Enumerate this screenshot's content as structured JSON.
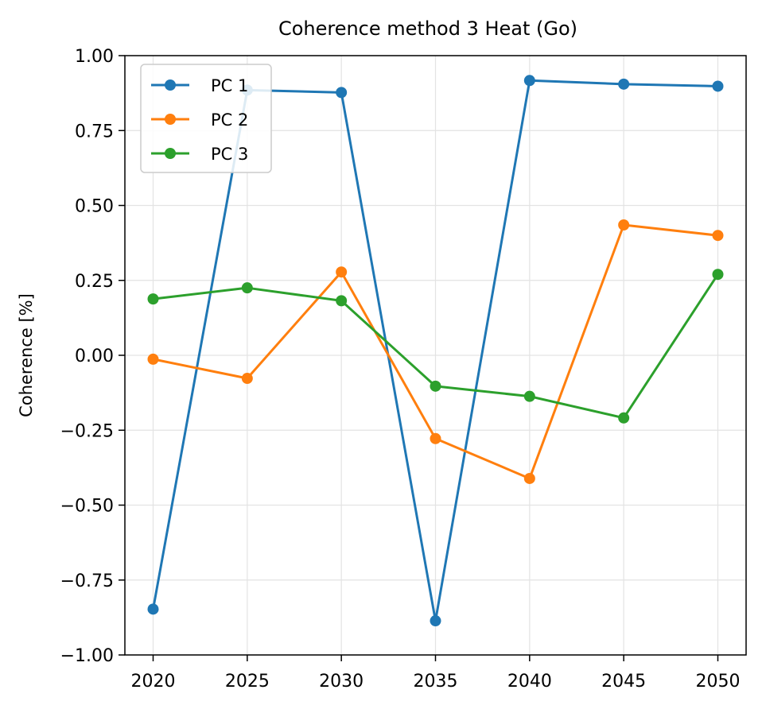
{
  "chart_data": {
    "type": "line",
    "title": "Coherence method 3 Heat (Go)",
    "xlabel": "",
    "ylabel": "Coherence [%]",
    "x": [
      2020,
      2025,
      2030,
      2035,
      2040,
      2045,
      2050
    ],
    "x_tick_labels": [
      "2020",
      "2025",
      "2030",
      "2035",
      "2040",
      "2045",
      "2050"
    ],
    "xlim": [
      2018.5,
      2051.5
    ],
    "ylim": [
      -1.0,
      1.0
    ],
    "y_ticks": [
      -1.0,
      -0.75,
      -0.5,
      -0.25,
      0.0,
      0.25,
      0.5,
      0.75,
      1.0
    ],
    "y_tick_labels": [
      "−1.00",
      "−0.75",
      "−0.50",
      "−0.25",
      "0.00",
      "0.25",
      "0.50",
      "0.75",
      "1.00"
    ],
    "grid": true,
    "legend_position": "top-left",
    "series": [
      {
        "name": "PC 1",
        "color": "#1f77b4",
        "values": [
          -0.847,
          0.885,
          0.877,
          -0.886,
          0.917,
          0.905,
          0.898
        ]
      },
      {
        "name": "PC 2",
        "color": "#ff7f0e",
        "values": [
          -0.013,
          -0.077,
          0.278,
          -0.278,
          -0.411,
          0.435,
          0.4
        ]
      },
      {
        "name": "PC 3",
        "color": "#2ca02c",
        "values": [
          0.188,
          0.225,
          0.182,
          -0.103,
          -0.137,
          -0.209,
          0.27
        ]
      }
    ]
  }
}
